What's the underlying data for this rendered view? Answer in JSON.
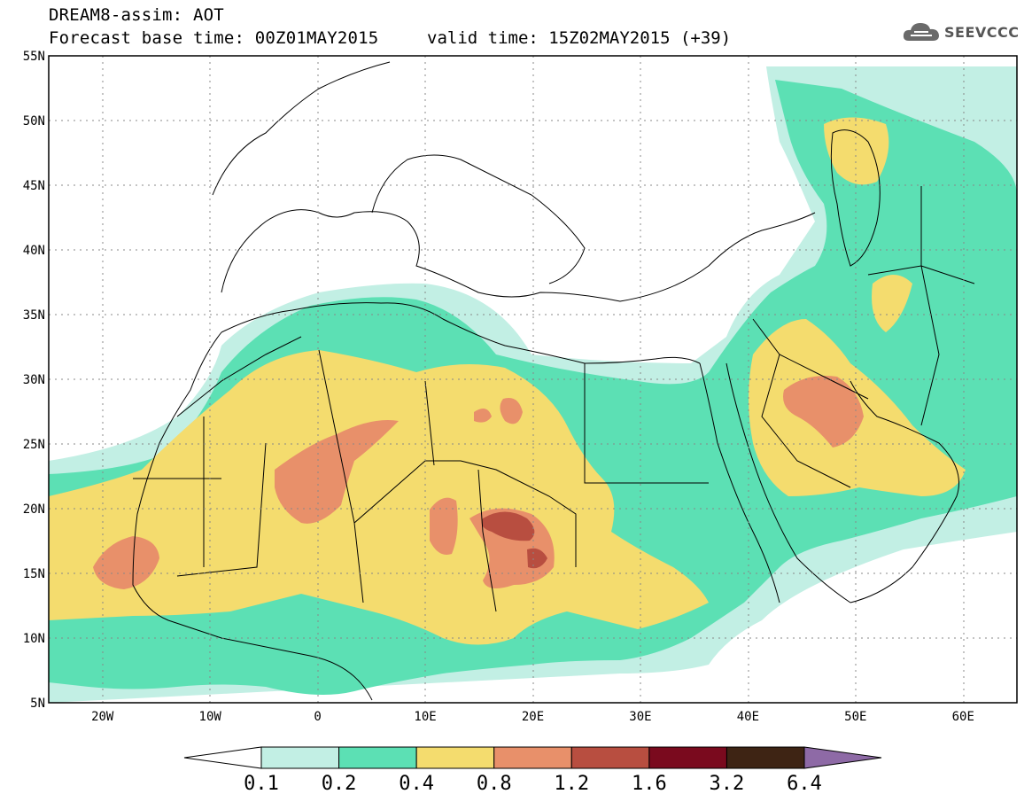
{
  "title": {
    "line1": "DREAM8-assim: AOT",
    "line2": "Forecast base time: 00Z01MAY2015",
    "valid": "valid time: 15Z02MAY2015 (+39)"
  },
  "logo": {
    "text": "SEEVCCC",
    "icon": "cloud-icon"
  },
  "map": {
    "lon_range": [
      -25,
      65
    ],
    "lat_range": [
      5,
      55
    ],
    "lat_labels": [
      "55N",
      "50N",
      "45N",
      "40N",
      "35N",
      "30N",
      "25N",
      "20N",
      "15N",
      "10N",
      "5N"
    ],
    "lon_labels": [
      "20W",
      "10W",
      "0",
      "10E",
      "20E",
      "30E",
      "40E",
      "50E",
      "60E"
    ]
  },
  "colorbar": {
    "labels": [
      "0.1",
      "0.2",
      "0.4",
      "0.8",
      "1.2",
      "1.6",
      "3.2",
      "6.4"
    ],
    "colors": [
      "#ffffff",
      "#c2efe4",
      "#5ce0b4",
      "#f4dc6e",
      "#e8906a",
      "#b84e40",
      "#7a0a1e",
      "#3e2414",
      "#8e6aa6"
    ]
  }
}
